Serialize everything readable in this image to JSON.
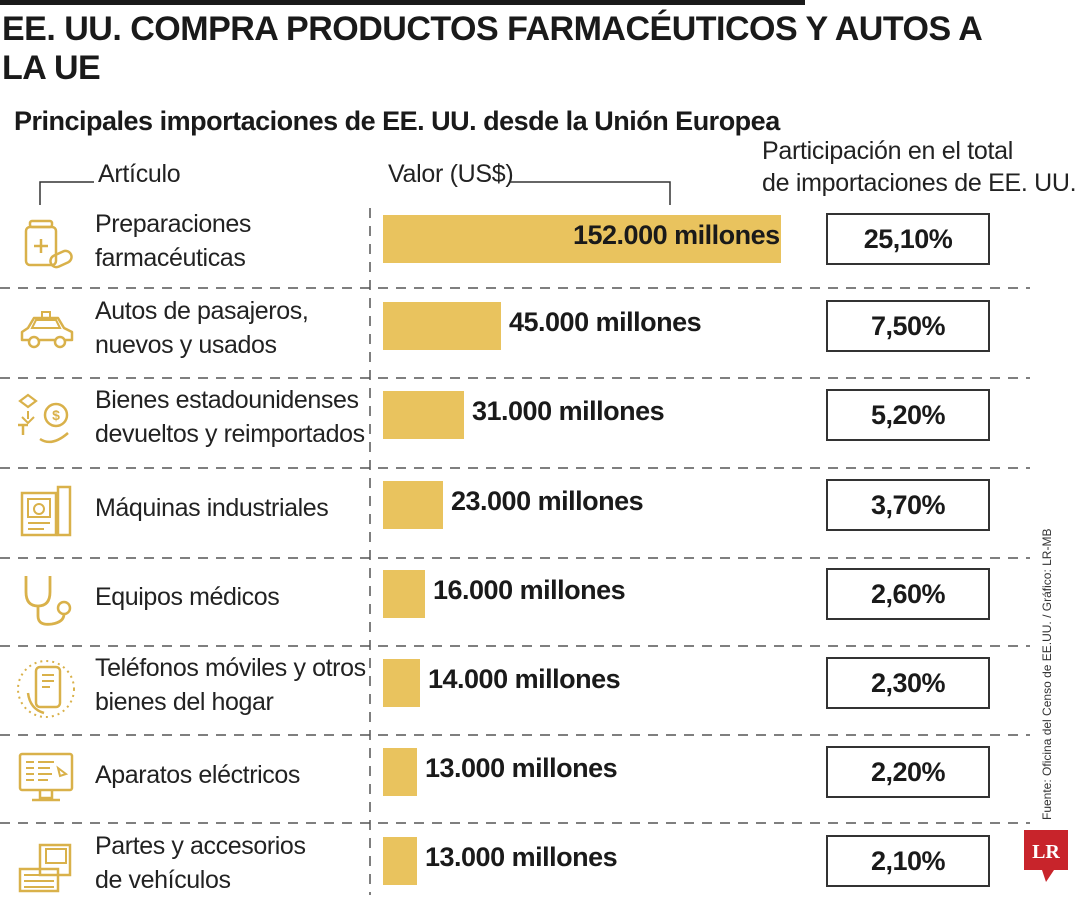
{
  "title": "EE. UU. COMPRA PRODUCTOS FARMACÉUTICOS Y AUTOS A LA UE",
  "subtitle": "Principales importaciones de EE. UU. desde la Unión Europea",
  "headers": {
    "article": "Artículo",
    "value": "Valor (US$)",
    "share_line1": "Participación en el total",
    "share_line2": "de importaciones de EE. UU."
  },
  "source": "Fuente: Oficina del Censo de EE.UU. / Gráfico: LR-MB",
  "logo_text": "LR",
  "colors": {
    "bar": "#e9c35e",
    "icon": "#d9b14a",
    "text": "#1a1a1a"
  },
  "chart_data": {
    "type": "bar",
    "orientation": "horizontal",
    "title": "Principales importaciones de EE. UU. desde la Unión Europea",
    "xlabel": "Valor (US$)",
    "units": "millones de US$",
    "categories": [
      "Preparaciones farmacéuticas",
      "Autos de pasajeros, nuevos y usados",
      "Bienes estadounidenses devueltos y reimportados",
      "Máquinas industriales",
      "Equipos médicos",
      "Teléfonos móviles y otros bienes del hogar",
      "Aparatos eléctricos",
      "Partes y accesorios de vehículos"
    ],
    "values": [
      152000,
      45000,
      31000,
      23000,
      16000,
      14000,
      13000,
      13000
    ],
    "xlim": [
      0,
      152000
    ]
  },
  "rows": [
    {
      "label_line1": "Preparaciones",
      "label_line2": "farmacéuticas",
      "value_label": "152.000 millones",
      "share": "25,10%",
      "icon": "medicine-icon"
    },
    {
      "label_line1": "Autos de pasajeros,",
      "label_line2": "nuevos y usados",
      "value_label": "45.000 millones",
      "share": "7,50%",
      "icon": "car-icon"
    },
    {
      "label_line1": "Bienes estadounidenses",
      "label_line2": "devueltos y reimportados",
      "value_label": "31.000 millones",
      "share": "5,20%",
      "icon": "money-exchange-icon"
    },
    {
      "label_line1": "Máquinas industriales",
      "label_line2": "",
      "value_label": "23.000 millones",
      "share": "3,70%",
      "icon": "industrial-machine-icon"
    },
    {
      "label_line1": "Equipos médicos",
      "label_line2": "",
      "value_label": "16.000 millones",
      "share": "2,60%",
      "icon": "stethoscope-icon"
    },
    {
      "label_line1": "Teléfonos móviles y otros",
      "label_line2": "bienes del hogar",
      "value_label": "14.000 millones",
      "share": "2,30%",
      "icon": "smartphone-icon"
    },
    {
      "label_line1": "Aparatos eléctricos",
      "label_line2": "",
      "value_label": "13.000 millones",
      "share": "2,20%",
      "icon": "monitor-icon"
    },
    {
      "label_line1": "Partes y accesorios",
      "label_line2": "de vehículos",
      "value_label": "13.000 millones",
      "share": "2,10%",
      "icon": "car-parts-icon"
    }
  ]
}
